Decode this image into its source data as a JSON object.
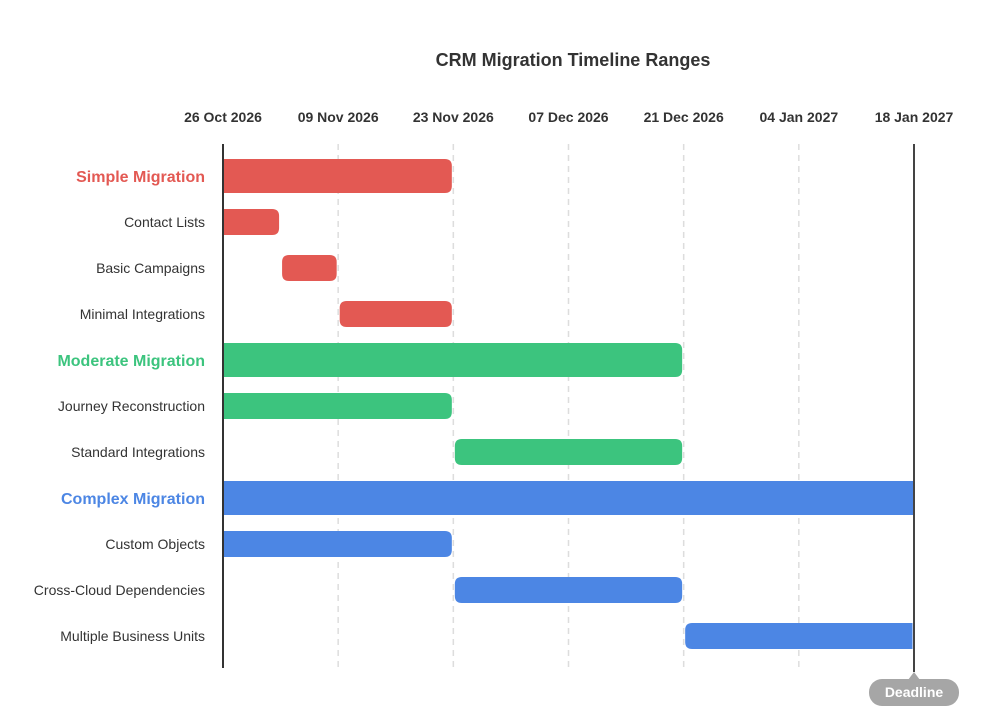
{
  "chart_data": {
    "type": "gantt",
    "title": "CRM Migration Timeline Ranges",
    "x_axis": {
      "type": "date",
      "min": "2026-10-26",
      "max": "2027-01-18",
      "ticks": [
        "26 Oct 2026",
        "09 Nov 2026",
        "23 Nov 2026",
        "07 Dec 2026",
        "21 Dec 2026",
        "04 Jan 2027",
        "18 Jan 2027"
      ],
      "tick_dates": [
        "2026-10-26",
        "2026-11-09",
        "2026-11-23",
        "2026-12-07",
        "2026-12-21",
        "2027-01-04",
        "2027-01-18"
      ],
      "grid": true
    },
    "rows": [
      {
        "label": "Simple Migration",
        "kind": "group",
        "color": "#e35953",
        "start": "2026-10-26",
        "end": "2026-11-23"
      },
      {
        "label": "Contact Lists",
        "kind": "task",
        "color": "#e35953",
        "start": "2026-10-26",
        "end": "2026-11-02"
      },
      {
        "label": "Basic Campaigns",
        "kind": "task",
        "color": "#e35953",
        "start": "2026-11-02",
        "end": "2026-11-09"
      },
      {
        "label": "Minimal Integrations",
        "kind": "task",
        "color": "#e35953",
        "start": "2026-11-09",
        "end": "2026-11-23"
      },
      {
        "label": "Moderate Migration",
        "kind": "group",
        "color": "#3cc47e",
        "start": "2026-10-26",
        "end": "2026-12-21"
      },
      {
        "label": "Journey Reconstruction",
        "kind": "task",
        "color": "#3cc47e",
        "start": "2026-10-26",
        "end": "2026-11-23"
      },
      {
        "label": "Standard Integrations",
        "kind": "task",
        "color": "#3cc47e",
        "start": "2026-11-23",
        "end": "2026-12-21"
      },
      {
        "label": "Complex Migration",
        "kind": "group",
        "color": "#4c86e4",
        "start": "2026-10-26",
        "end": "2027-01-18"
      },
      {
        "label": "Custom Objects",
        "kind": "task",
        "color": "#4c86e4",
        "start": "2026-10-26",
        "end": "2026-11-23"
      },
      {
        "label": "Cross-Cloud Dependencies",
        "kind": "task",
        "color": "#4c86e4",
        "start": "2026-11-23",
        "end": "2026-12-21"
      },
      {
        "label": "Multiple Business Units",
        "kind": "task",
        "color": "#4c86e4",
        "start": "2026-12-21",
        "end": "2027-01-18"
      }
    ],
    "marker": {
      "label": "Deadline",
      "date": "2027-01-18",
      "color": "#a6a6a6"
    }
  }
}
